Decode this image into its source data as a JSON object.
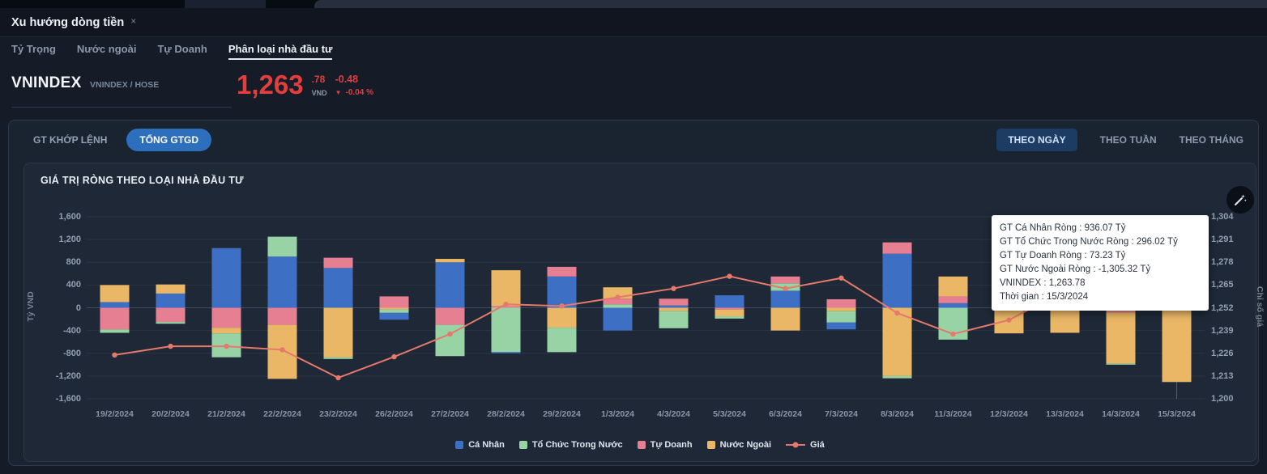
{
  "window": {
    "tab_title": "Xu hướng dòng tiền",
    "tab_close_icon": "×"
  },
  "nav": {
    "items": [
      {
        "label": "Tỷ Trọng",
        "active": false
      },
      {
        "label": "Nước ngoài",
        "active": false
      },
      {
        "label": "Tự Doanh",
        "active": false
      },
      {
        "label": "Phân loại nhà đầu tư",
        "active": true
      }
    ]
  },
  "symbol": {
    "name": "VNINDEX",
    "detail": "VNINDEX / HOSE",
    "price_int": "1,263",
    "price_dec": ".78",
    "currency": "VND",
    "direction_icon": "▼",
    "change": "-0.48",
    "change_pct": "-0.04 %"
  },
  "toolbar": {
    "buttons_left": [
      {
        "label": "GT KHỚP LỆNH",
        "active": false
      },
      {
        "label": "TỔNG GTGD",
        "active": true
      }
    ],
    "buttons_right": [
      {
        "label": "THEO NGÀY",
        "active": true
      },
      {
        "label": "THEO TUẦN",
        "active": false
      },
      {
        "label": "THEO THÁNG",
        "active": false
      }
    ]
  },
  "chart": {
    "title": "GIÁ TRỊ RÒNG THEO LOẠI NHÀ ĐẦU TƯ"
  },
  "tooltip": {
    "lines": [
      "GT Cá Nhân Ròng : 936.07 Tỷ",
      "GT Tổ Chức Trong Nước Ròng : 296.02 Tỷ",
      "GT Tự Doanh Ròng : 73.23 Tỷ",
      "GT Nước Ngoài Ròng : -1,305.32 Tỷ",
      "VNINDEX : 1,263.78",
      "Thời gian : 15/3/2024"
    ]
  },
  "colors": {
    "accent_blue": "#2e6fbd",
    "time_button_active_bg": "#1d3c63",
    "negative_red": "#e23e3e",
    "bar_ca_nhan": "#3d6fc4",
    "bar_to_chuc": "#97d3a4",
    "bar_tu_doanh": "#e57f91",
    "bar_nuoc_ngoai": "#eab766",
    "line_gia": "#e5796b",
    "panel_bg": "#1a2330",
    "card_bg": "#1e2836",
    "gridline": "#2a3443"
  },
  "chart_data": {
    "type": "stacked-bar+line",
    "categories": [
      "19/2/2024",
      "20/2/2024",
      "21/2/2024",
      "22/2/2024",
      "23/2/2024",
      "26/2/2024",
      "27/2/2024",
      "28/2/2024",
      "29/2/2024",
      "1/3/2024",
      "4/3/2024",
      "5/3/2024",
      "6/3/2024",
      "7/3/2024",
      "8/3/2024",
      "11/3/2024",
      "12/3/2024",
      "13/3/2024",
      "14/3/2024",
      "15/3/2024"
    ],
    "series": [
      {
        "name": "Cá Nhân",
        "color": "#3d6fc4",
        "values": [
          100,
          250,
          1050,
          900,
          700,
          -120,
          800,
          -20,
          550,
          -400,
          40,
          220,
          300,
          -120,
          950,
          80,
          150,
          300,
          150,
          936.07
        ]
      },
      {
        "name": "Tổ Chức Trong Nước",
        "color": "#97d3a4",
        "values": [
          -60,
          -30,
          -420,
          350,
          -30,
          -60,
          -550,
          -780,
          -430,
          60,
          -300,
          -40,
          130,
          -200,
          -40,
          -560,
          100,
          60,
          -20,
          296.02
        ]
      },
      {
        "name": "Tự Doanh",
        "color": "#e57f91",
        "values": [
          -380,
          -250,
          -350,
          -300,
          180,
          200,
          -300,
          30,
          170,
          100,
          120,
          -30,
          120,
          150,
          200,
          120,
          150,
          -40,
          -80,
          73.23
        ]
      },
      {
        "name": "Nước Ngoài",
        "color": "#eab766",
        "values": [
          300,
          160,
          -100,
          -950,
          -870,
          -30,
          60,
          630,
          -350,
          200,
          -60,
          -120,
          -400,
          -60,
          -1200,
          350,
          -450,
          -400,
          -900,
          -1305.32
        ]
      }
    ],
    "line": {
      "name": "Giá",
      "color": "#e5796b",
      "values": [
        1225,
        1230,
        1230,
        1228,
        1212,
        1224,
        1237,
        1254,
        1253,
        1258,
        1263,
        1270,
        1263,
        1269,
        1249,
        1237,
        1245,
        1262,
        1264,
        1263.78
      ]
    },
    "y_left": {
      "label": "Tỷ VND",
      "min": -1600,
      "max": 1600,
      "ticks": [
        [
          1600,
          "1,600"
        ],
        [
          1200,
          "1,200"
        ],
        [
          800,
          "800"
        ],
        [
          400,
          "400"
        ],
        [
          0,
          "0"
        ],
        [
          -400,
          "-400"
        ],
        [
          -800,
          "-800"
        ],
        [
          -1200,
          "-1,200"
        ],
        [
          -1600,
          "-1,600"
        ]
      ]
    },
    "y_right": {
      "label": "Chỉ số giá",
      "min": 1200,
      "max": 1304,
      "ticks": [
        [
          1304,
          "1,304"
        ],
        [
          1291,
          "1,291"
        ],
        [
          1278,
          "1,278"
        ],
        [
          1265,
          "1,265"
        ],
        [
          1252,
          "1,252"
        ],
        [
          1239,
          "1,239"
        ],
        [
          1226,
          "1,226"
        ],
        [
          1213,
          "1,213"
        ],
        [
          1200,
          "1,200"
        ]
      ]
    },
    "grid": true,
    "legend_position": "bottom",
    "crosshair_category_index": 19
  }
}
